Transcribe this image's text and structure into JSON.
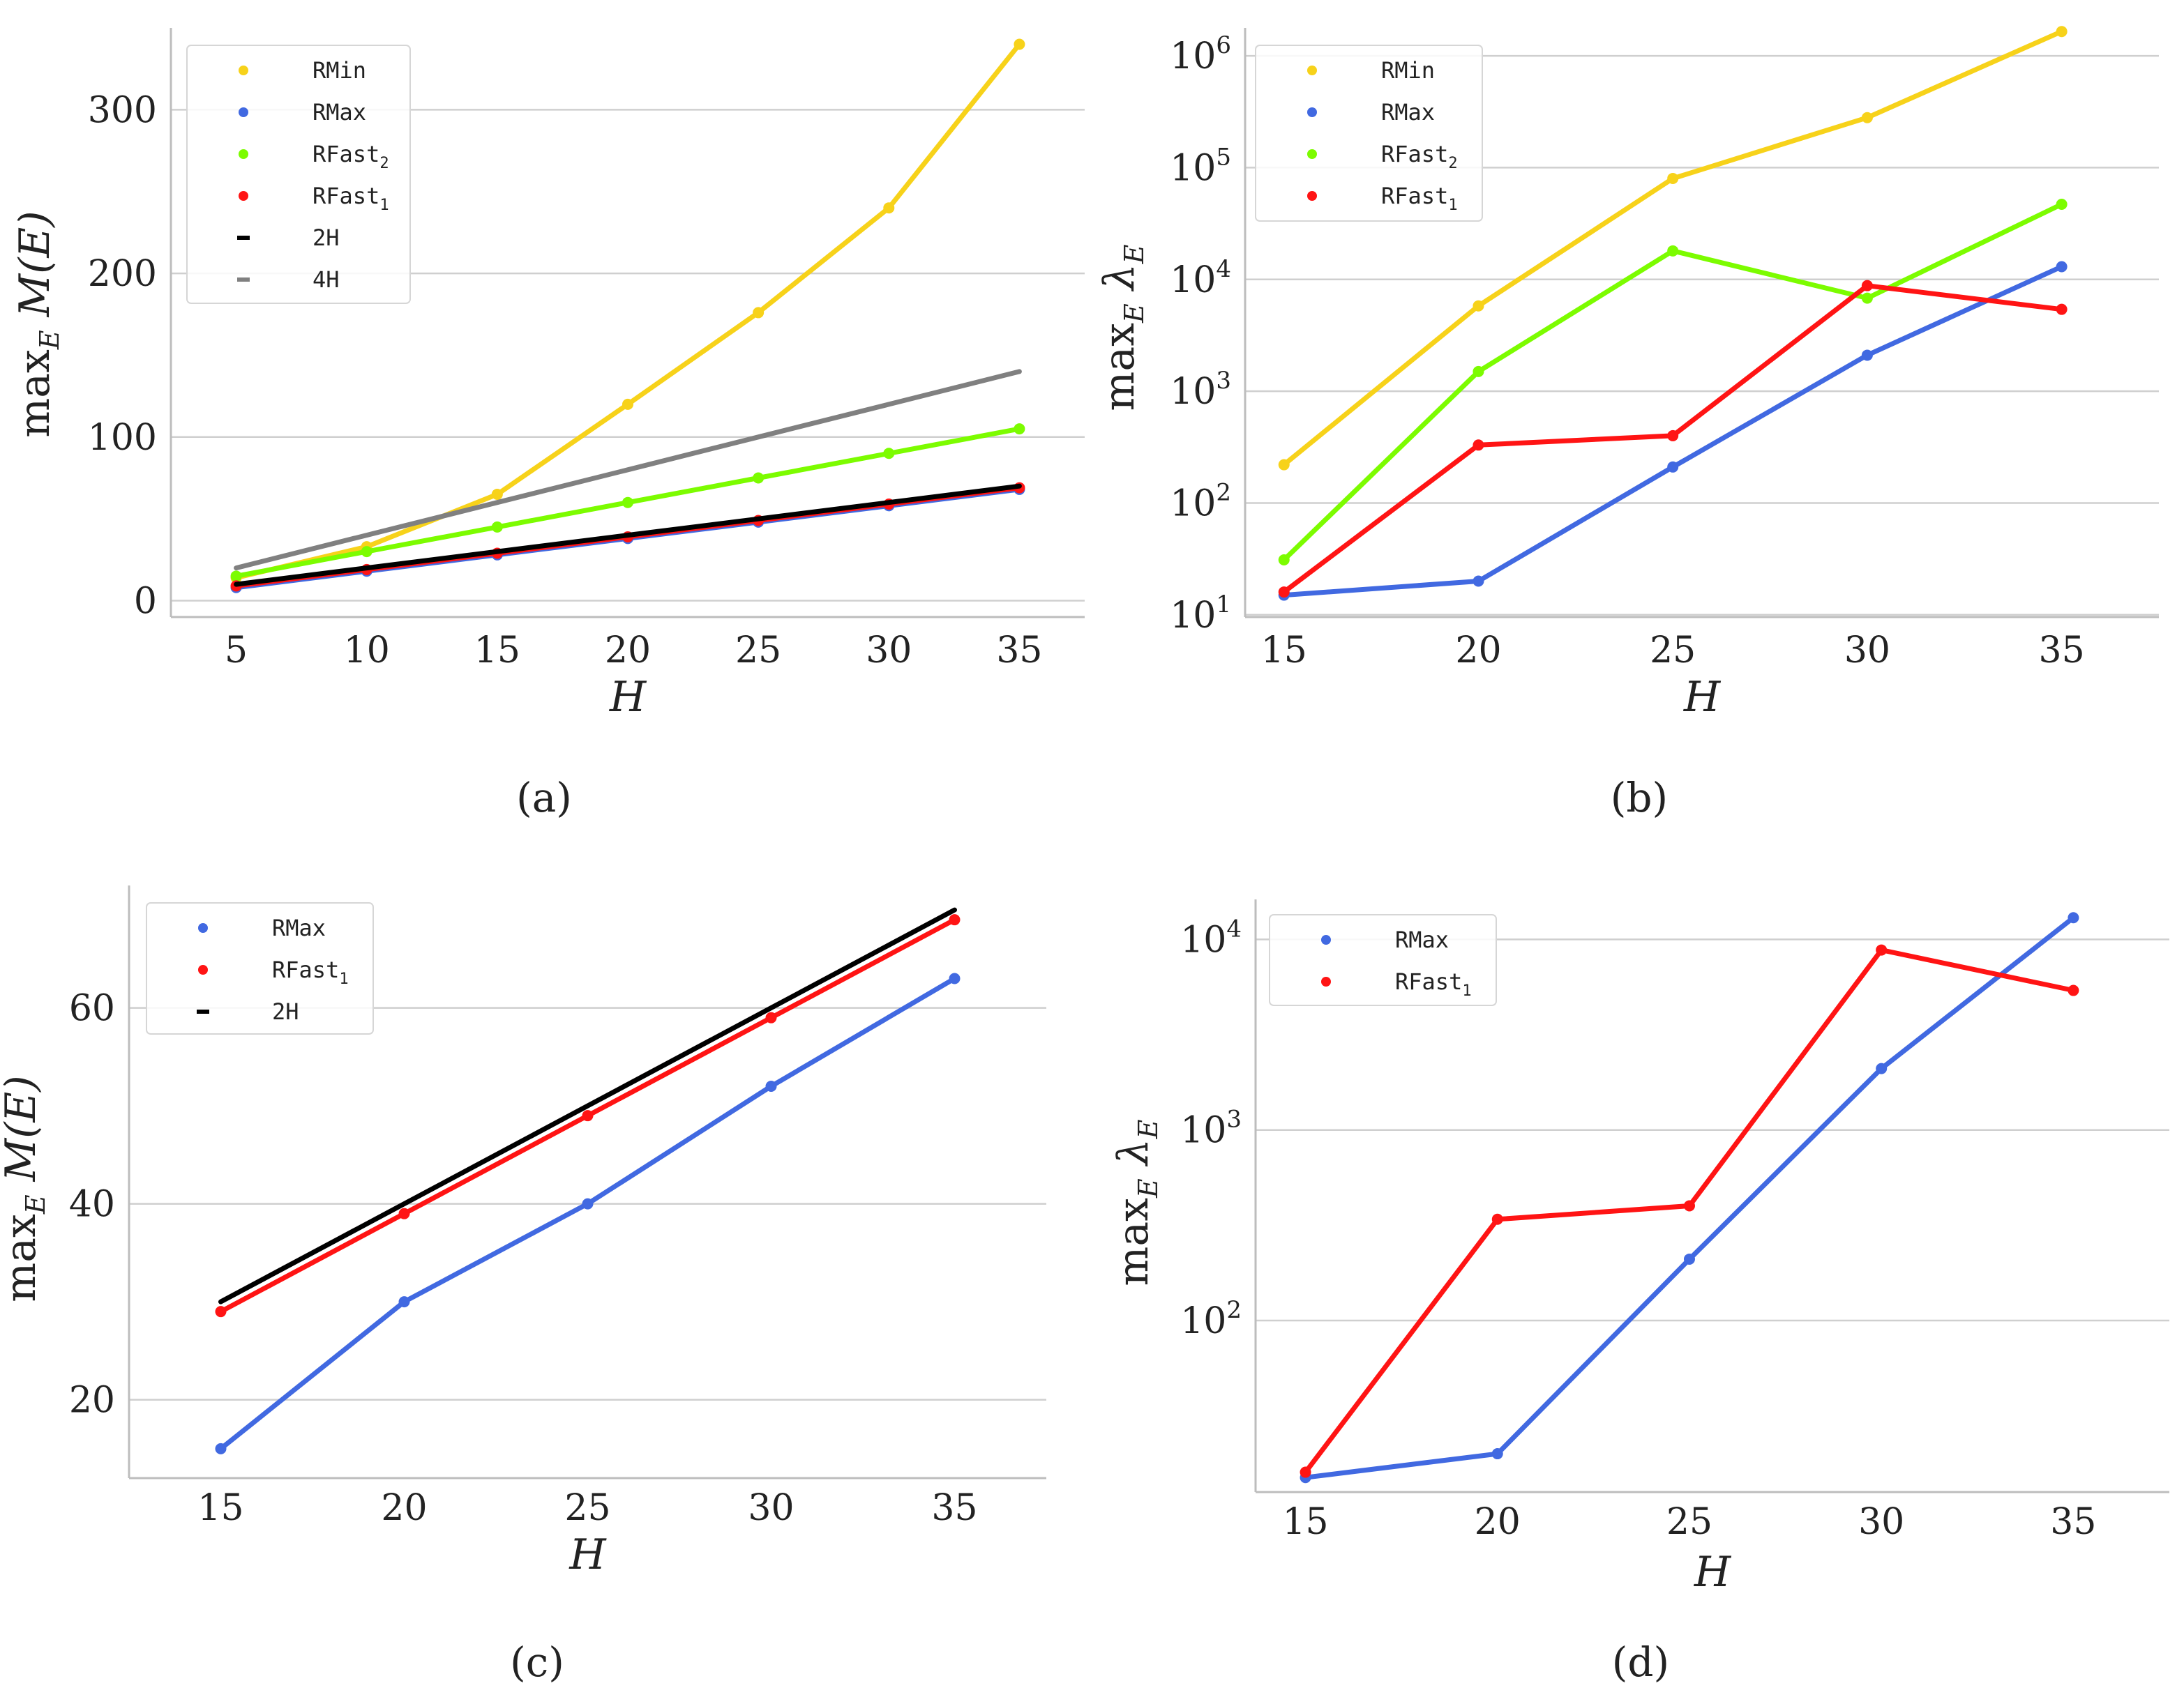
{
  "figure": {
    "panels": [
      "(a)",
      "(b)",
      "(c)",
      "(d)"
    ]
  },
  "colors": {
    "RMin": "#f7d21a",
    "RMax": "#4169e1",
    "RFast2": "#7cfc00",
    "RFast1": "#ff1414",
    "2H": "#000000",
    "4H": "#808080"
  },
  "chart_data": [
    {
      "panel": "(a)",
      "type": "line",
      "xlabel": "H",
      "ylabel": "max_E M(E)",
      "yscale": "linear",
      "xticks": [
        "5",
        "10",
        "15",
        "20",
        "25",
        "30",
        "35"
      ],
      "yticks": [
        "0",
        "100",
        "200",
        "300"
      ],
      "xlim": [
        2.5,
        37.5
      ],
      "ylim": [
        -10,
        350
      ],
      "legend_position": "upper-left",
      "series": [
        {
          "key": "RMin",
          "label": "RMin",
          "x": [
            5,
            10,
            15,
            20,
            25,
            30,
            35
          ],
          "y": [
            14,
            33,
            65,
            120,
            176,
            240,
            340
          ]
        },
        {
          "key": "RMax",
          "label": "RMax",
          "x": [
            5,
            10,
            15,
            20,
            25,
            30,
            35
          ],
          "y": [
            8,
            18,
            28,
            38,
            48,
            58,
            68
          ]
        },
        {
          "key": "RFast2",
          "label": "RFast",
          "sub": "2",
          "x": [
            5,
            10,
            15,
            20,
            25,
            30,
            35
          ],
          "y": [
            15,
            30,
            45,
            60,
            75,
            90,
            105
          ]
        },
        {
          "key": "RFast1",
          "label": "RFast",
          "sub": "1",
          "x": [
            5,
            10,
            15,
            20,
            25,
            30,
            35
          ],
          "y": [
            9,
            19,
            29,
            39,
            49,
            59,
            69
          ]
        },
        {
          "key": "2H",
          "label": "2H",
          "x": [
            5,
            10,
            15,
            20,
            25,
            30,
            35
          ],
          "y": [
            10,
            20,
            30,
            40,
            50,
            60,
            70
          ],
          "no_markers": true
        },
        {
          "key": "4H",
          "label": "4H",
          "x": [
            5,
            10,
            15,
            20,
            25,
            30,
            35
          ],
          "y": [
            20,
            40,
            60,
            80,
            100,
            120,
            140
          ],
          "no_markers": true
        }
      ]
    },
    {
      "panel": "(b)",
      "type": "line",
      "xlabel": "H",
      "ylabel": "max_E λ_E",
      "yscale": "log",
      "xticks": [
        "15",
        "20",
        "25",
        "30",
        "35"
      ],
      "yticks": [
        "10^1",
        "10^2",
        "10^3",
        "10^4",
        "10^5",
        "10^6"
      ],
      "xlim": [
        14,
        37.5
      ],
      "ylim_exp": [
        0.98,
        6.25
      ],
      "legend_position": "upper-left",
      "series": [
        {
          "key": "RMin",
          "label": "RMin",
          "x": [
            15,
            20,
            25,
            30,
            35
          ],
          "y": [
            220,
            5800,
            80000,
            280000,
            1650000
          ]
        },
        {
          "key": "RMax",
          "label": "RMax",
          "x": [
            15,
            20,
            25,
            30,
            35
          ],
          "y": [
            15,
            20,
            210,
            2100,
            13000
          ]
        },
        {
          "key": "RFast2",
          "label": "RFast",
          "sub": "2",
          "x": [
            15,
            20,
            25,
            30,
            35
          ],
          "y": [
            31,
            1500,
            18000,
            6800,
            47000
          ]
        },
        {
          "key": "RFast1",
          "label": "RFast",
          "sub": "1",
          "x": [
            15,
            20,
            25,
            30,
            35
          ],
          "y": [
            16,
            330,
            400,
            8800,
            5400
          ]
        }
      ]
    },
    {
      "panel": "(c)",
      "type": "line",
      "xlabel": "H",
      "ylabel": "max_E M(E)",
      "yscale": "linear",
      "xticks": [
        "15",
        "20",
        "25",
        "30",
        "35"
      ],
      "yticks": [
        "20",
        "40",
        "60"
      ],
      "xlim": [
        12.5,
        37.5
      ],
      "ylim": [
        12,
        72.5
      ],
      "legend_position": "upper-left",
      "series": [
        {
          "key": "RMax",
          "label": "RMax",
          "x": [
            15,
            20,
            25,
            30,
            35
          ],
          "y": [
            15,
            30,
            40,
            52,
            63
          ]
        },
        {
          "key": "RFast1",
          "label": "RFast",
          "sub": "1",
          "x": [
            15,
            20,
            25,
            30,
            35
          ],
          "y": [
            29,
            39,
            49,
            59,
            69
          ]
        },
        {
          "key": "2H",
          "label": "2H",
          "x": [
            15,
            20,
            25,
            30,
            35
          ],
          "y": [
            30,
            40,
            50,
            60,
            70
          ],
          "no_markers": true
        }
      ]
    },
    {
      "panel": "(d)",
      "type": "line",
      "xlabel": "H",
      "ylabel": "max_E λ_E",
      "yscale": "log",
      "xticks": [
        "15",
        "20",
        "25",
        "30",
        "35"
      ],
      "yticks": [
        "10^2",
        "10^3",
        "10^4"
      ],
      "xlim": [
        13.7,
        37.5
      ],
      "ylim_exp": [
        1.1,
        4.21
      ],
      "legend_position": "upper-left",
      "series": [
        {
          "key": "RMax",
          "label": "RMax",
          "x": [
            15,
            20,
            25,
            30,
            35
          ],
          "y": [
            15,
            20,
            210,
            2100,
            13000
          ]
        },
        {
          "key": "RFast1",
          "label": "RFast",
          "sub": "1",
          "x": [
            15,
            20,
            25,
            30,
            35
          ],
          "y": [
            16,
            340,
            400,
            8800,
            5400
          ]
        }
      ]
    }
  ]
}
